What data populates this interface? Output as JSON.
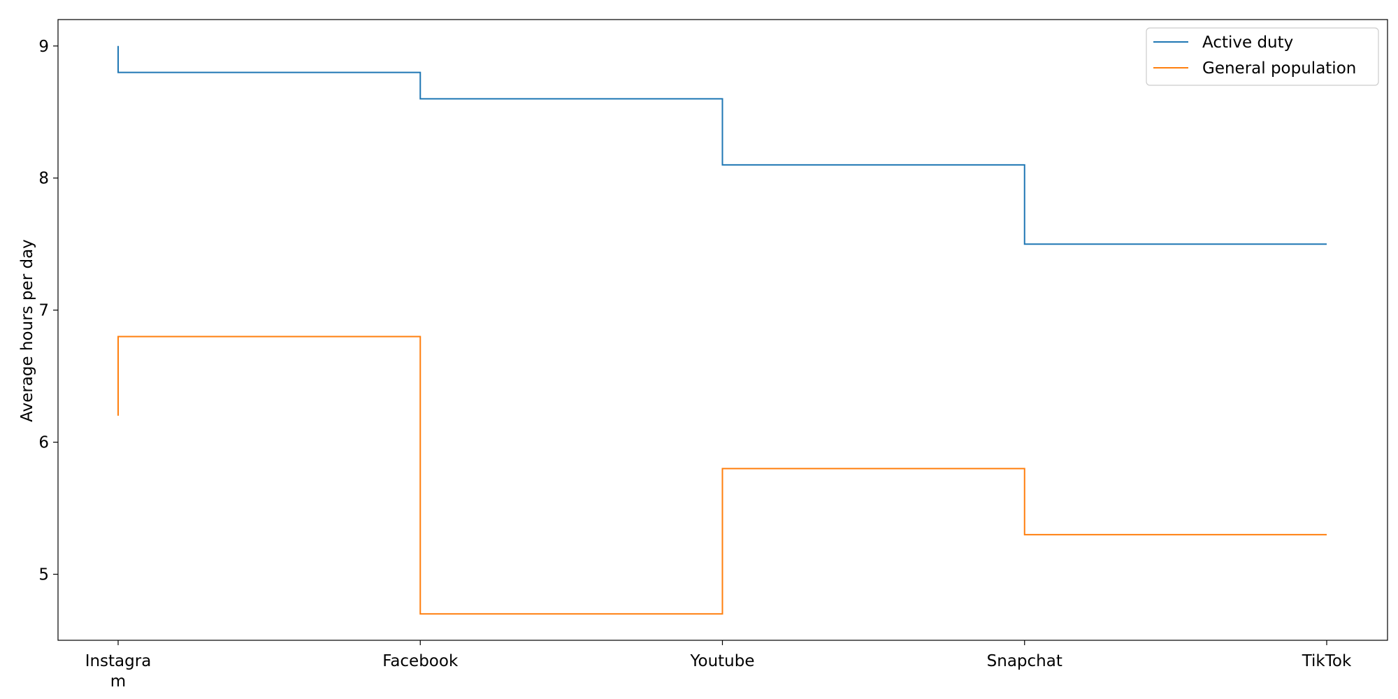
{
  "chart_data": {
    "type": "line",
    "step": "post",
    "categories": [
      "Instagram",
      "Facebook",
      "Youtube",
      "Snapchat",
      "TikTok"
    ],
    "category_tick_labels": [
      [
        "Instagra",
        "m"
      ],
      [
        "Facebook"
      ],
      [
        "Youtube"
      ],
      [
        "Snapchat"
      ],
      [
        "TikTok"
      ]
    ],
    "series": [
      {
        "name": "Active duty",
        "color": "#1f77b4",
        "values": [
          9.0,
          8.8,
          8.6,
          8.1,
          7.5
        ]
      },
      {
        "name": "General population",
        "color": "#ff7f0e",
        "values": [
          6.2,
          6.8,
          4.7,
          5.8,
          5.3
        ]
      }
    ],
    "title": "",
    "xlabel": "",
    "ylabel": "Average hours per day",
    "ylim": [
      4.5,
      9.2
    ],
    "yticks": [
      5,
      6,
      7,
      8,
      9
    ],
    "grid": false,
    "legend_position": "top-right"
  }
}
